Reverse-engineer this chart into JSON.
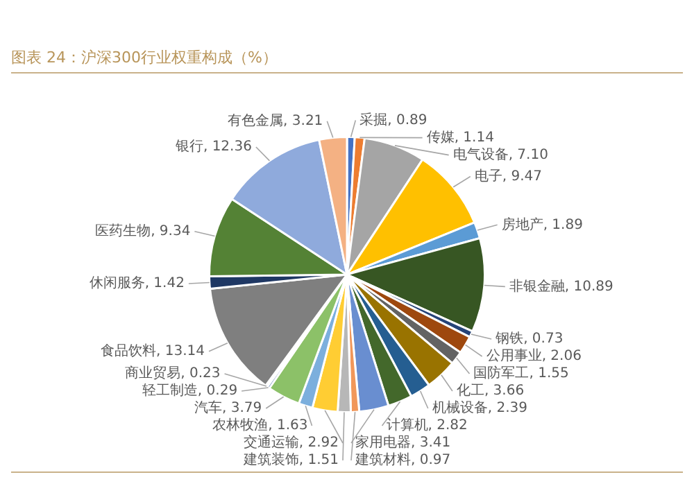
{
  "chart_data": {
    "type": "pie",
    "title": "图表 24：沪深300行业权重构成（%）",
    "categories": [
      "采掘",
      "传媒",
      "电气设备",
      "电子",
      "房地产",
      "非银金融",
      "钢铁",
      "公用事业",
      "国防军工",
      "化工",
      "机械设备",
      "计算机",
      "家用电器",
      "建筑材料",
      "建筑装饰",
      "交通运输",
      "农林牧渔",
      "汽车",
      "轻工制造",
      "商业贸易",
      "食品饮料",
      "休闲服务",
      "医药生物",
      "银行",
      "有色金属"
    ],
    "values": [
      0.89,
      1.14,
      7.1,
      9.47,
      1.89,
      10.89,
      0.73,
      2.06,
      1.55,
      3.66,
      2.39,
      2.82,
      3.41,
      0.97,
      1.51,
      2.92,
      1.63,
      3.79,
      0.29,
      0.23,
      13.14,
      1.42,
      9.34,
      12.36,
      3.21
    ],
    "colors": [
      "#4472c4",
      "#ed7d31",
      "#a5a5a5",
      "#ffc000",
      "#5b9bd5",
      "#375623",
      "#264478",
      "#9e480e",
      "#636363",
      "#997300",
      "#255e91",
      "#43682b",
      "#698ed0",
      "#f1975a",
      "#b7b7b7",
      "#ffcd33",
      "#7cafdd",
      "#8cc168",
      "#335aa1",
      "#d26012",
      "#7f7f7f",
      "#1f3864",
      "#548235",
      "#8faadc",
      "#f4b183"
    ],
    "value_labels": [
      ", 0.89",
      ", 1.14",
      ", 7.10",
      ", 9.47",
      ", 1.89",
      ", 10.89",
      ", 0.73",
      ", 2.06",
      ", 1.55",
      ", 3.66",
      ", 2.39",
      ", 2.82",
      ", 3.41",
      ", 0.97",
      ", 1.51",
      ", 2.92",
      ", 1.63",
      ", 3.79",
      ", 0.29",
      ", 0.23",
      ", 13.14",
      ", 1.42",
      ", 9.34",
      ", 12.36",
      ", 3.21"
    ],
    "data_labels": true,
    "legend": false
  }
}
